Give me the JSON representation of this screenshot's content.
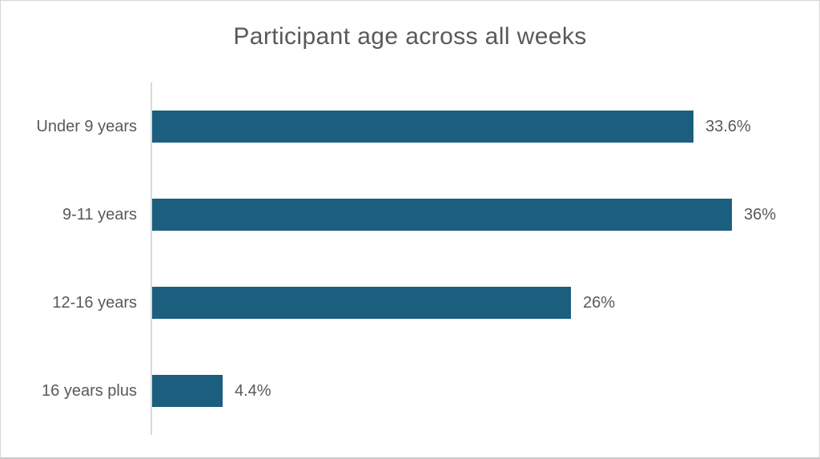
{
  "chart": {
    "title": "Participant age across all weeks",
    "bar_color": "#1c5e7e",
    "axis_color": "#d9d9d9",
    "text_color": "#595959",
    "background": "#ffffff"
  },
  "chart_data": {
    "type": "bar",
    "orientation": "horizontal",
    "title": "Participant age across all weeks",
    "categories": [
      "Under 9 years",
      "9-11 years",
      "12-16 years",
      "16 years plus"
    ],
    "values": [
      33.6,
      36,
      26,
      4.4
    ],
    "value_labels": [
      "33.6%",
      "36%",
      "26%",
      "4.4%"
    ],
    "unit": "%",
    "xlabel": "",
    "ylabel": "",
    "xlim": [
      0,
      36
    ],
    "grid": false,
    "legend": "none",
    "bar_color": "#1c5e7e"
  }
}
